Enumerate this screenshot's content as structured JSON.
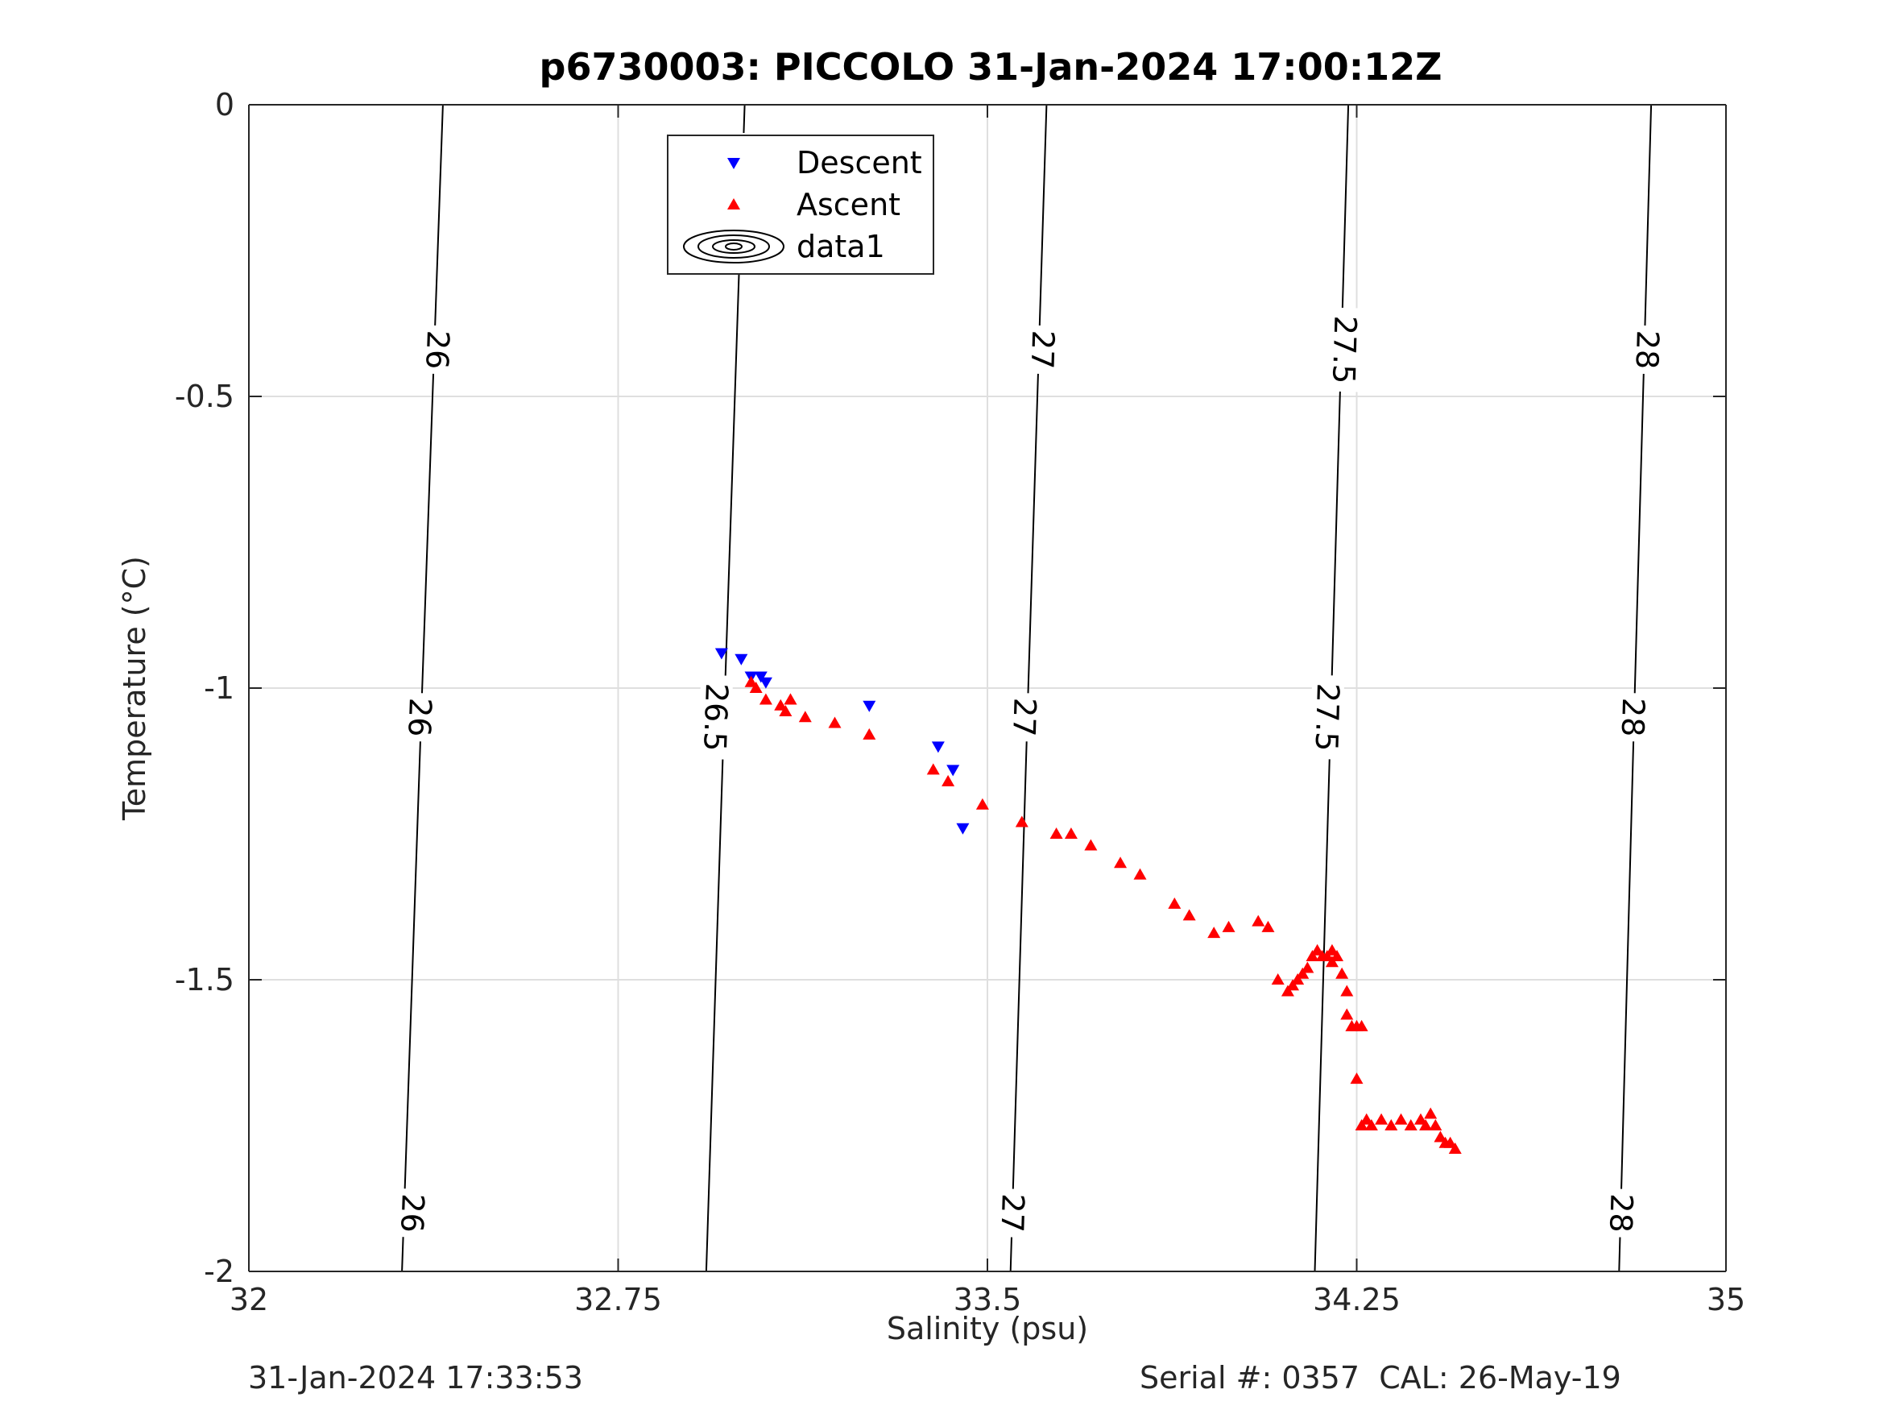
{
  "title": "p6730003: PICCOLO 31-Jan-2024 17:00:12Z",
  "footer": {
    "timestamp": "31-Jan-2024 17:33:53",
    "serial_cal": "Serial #: 0357  CAL: 26-May-19"
  },
  "chart_data": {
    "type": "scatter",
    "title": "p6730003: PICCOLO 31-Jan-2024 17:00:12Z",
    "xlabel": "Salinity (psu)",
    "ylabel": "Temperature (°C)",
    "xlim": [
      32,
      35
    ],
    "ylim": [
      -2,
      0
    ],
    "x_ticks": [
      32,
      32.75,
      33.5,
      34.25,
      35
    ],
    "x_tick_labels": [
      "32",
      "32.75",
      "33.5",
      "34.25",
      "35"
    ],
    "y_ticks": [
      0,
      -0.5,
      -1,
      -1.5,
      -2
    ],
    "y_tick_labels": [
      "0",
      "-0.5",
      "-1",
      "-1.5",
      "-2"
    ],
    "grid": true,
    "legend_position": "top-center",
    "legend": [
      {
        "name": "Descent",
        "marker": "triangle-down",
        "color": "#0000ff"
      },
      {
        "name": "Ascent",
        "marker": "triangle-up",
        "color": "#ff0000"
      },
      {
        "name": "data1",
        "marker": "contour",
        "color": "#000000"
      }
    ],
    "series": [
      {
        "name": "Descent",
        "marker": "triangle-down",
        "color": "#0000ff",
        "points": [
          [
            32.96,
            -0.94
          ],
          [
            33.0,
            -0.95
          ],
          [
            33.02,
            -0.98
          ],
          [
            33.04,
            -0.98
          ],
          [
            33.05,
            -0.99
          ],
          [
            33.26,
            -1.03
          ],
          [
            33.4,
            -1.1
          ],
          [
            33.43,
            -1.14
          ],
          [
            33.45,
            -1.24
          ]
        ]
      },
      {
        "name": "Ascent",
        "marker": "triangle-up",
        "color": "#ff0000",
        "points": [
          [
            33.02,
            -0.99
          ],
          [
            33.03,
            -1.0
          ],
          [
            33.05,
            -1.02
          ],
          [
            33.08,
            -1.03
          ],
          [
            33.09,
            -1.04
          ],
          [
            33.1,
            -1.02
          ],
          [
            33.1,
            -1.02
          ],
          [
            33.13,
            -1.05
          ],
          [
            33.19,
            -1.06
          ],
          [
            33.26,
            -1.08
          ],
          [
            33.39,
            -1.14
          ],
          [
            33.42,
            -1.16
          ],
          [
            33.49,
            -1.2
          ],
          [
            33.57,
            -1.23
          ],
          [
            33.64,
            -1.25
          ],
          [
            33.67,
            -1.25
          ],
          [
            33.71,
            -1.27
          ],
          [
            33.77,
            -1.3
          ],
          [
            33.81,
            -1.32
          ],
          [
            33.88,
            -1.37
          ],
          [
            33.91,
            -1.39
          ],
          [
            33.96,
            -1.42
          ],
          [
            33.99,
            -1.41
          ],
          [
            34.05,
            -1.4
          ],
          [
            34.07,
            -1.41
          ],
          [
            34.09,
            -1.5
          ],
          [
            34.11,
            -1.52
          ],
          [
            34.12,
            -1.51
          ],
          [
            34.13,
            -1.5
          ],
          [
            34.14,
            -1.49
          ],
          [
            34.15,
            -1.48
          ],
          [
            34.16,
            -1.46
          ],
          [
            34.17,
            -1.45
          ],
          [
            34.18,
            -1.46
          ],
          [
            34.19,
            -1.46
          ],
          [
            34.2,
            -1.45
          ],
          [
            34.2,
            -1.47
          ],
          [
            34.21,
            -1.46
          ],
          [
            34.22,
            -1.49
          ],
          [
            34.23,
            -1.52
          ],
          [
            34.23,
            -1.56
          ],
          [
            34.24,
            -1.58
          ],
          [
            34.25,
            -1.58
          ],
          [
            34.26,
            -1.58
          ],
          [
            34.25,
            -1.67
          ],
          [
            34.26,
            -1.75
          ],
          [
            34.27,
            -1.74
          ],
          [
            34.28,
            -1.75
          ],
          [
            34.3,
            -1.74
          ],
          [
            34.32,
            -1.75
          ],
          [
            34.34,
            -1.74
          ],
          [
            34.36,
            -1.75
          ],
          [
            34.38,
            -1.74
          ],
          [
            34.39,
            -1.75
          ],
          [
            34.4,
            -1.73
          ],
          [
            34.41,
            -1.75
          ],
          [
            34.42,
            -1.77
          ],
          [
            34.43,
            -1.78
          ],
          [
            34.44,
            -1.78
          ],
          [
            34.45,
            -1.79
          ]
        ]
      }
    ],
    "isopycnals": [
      {
        "label": "26",
        "line": [
          [
            32.311,
            -2
          ],
          [
            32.352,
            -1
          ],
          [
            32.394,
            0
          ]
        ],
        "label_points": [
          [
            32.332,
            -1.9
          ],
          [
            32.347,
            -1.05
          ],
          [
            32.383,
            -0.42
          ]
        ]
      },
      {
        "label": "26.5",
        "line": [
          [
            32.929,
            -2
          ],
          [
            32.967,
            -1
          ],
          [
            33.007,
            0
          ]
        ],
        "label_points": [
          [
            32.948,
            -1.05
          ],
          [
            32.997,
            -0.12
          ]
        ]
      },
      {
        "label": "27",
        "line": [
          [
            33.547,
            -2
          ],
          [
            33.583,
            -1
          ],
          [
            33.62,
            0
          ]
        ],
        "label_points": [
          [
            33.551,
            -1.9
          ],
          [
            33.575,
            -1.05
          ],
          [
            33.612,
            -0.42
          ]
        ]
      },
      {
        "label": "27.5",
        "line": [
          [
            34.165,
            -2
          ],
          [
            34.199,
            -1
          ],
          [
            34.233,
            0
          ]
        ],
        "label_points": [
          [
            34.19,
            -1.05
          ],
          [
            34.225,
            -0.42
          ]
        ]
      },
      {
        "label": "28",
        "line": [
          [
            34.783,
            -2
          ],
          [
            34.815,
            -1
          ],
          [
            34.848,
            0
          ]
        ],
        "label_points": [
          [
            34.787,
            -1.9
          ],
          [
            34.811,
            -1.05
          ],
          [
            34.84,
            -0.42
          ]
        ]
      }
    ]
  }
}
